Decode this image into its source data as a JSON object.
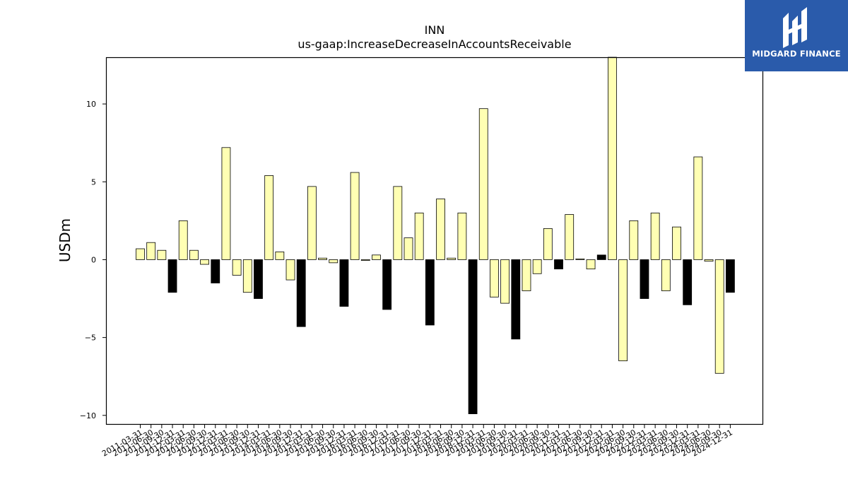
{
  "logo": {
    "text": "MIDGARD FINANCE",
    "background": "#2a5bab"
  },
  "chart_data": {
    "type": "bar",
    "title": "INN",
    "subtitle": "us-gaap:IncreaseDecreaseInAccountsReceivable",
    "xlabel": "",
    "ylabel": "USDm",
    "ylim": [
      -10.6,
      13.0
    ],
    "yticks": [
      -10,
      -5,
      0,
      5,
      10
    ],
    "grid": false,
    "colors": {
      "quarterly": "#ffffb3",
      "annual": "#000000",
      "edge": "#000000"
    },
    "categories": [
      "2011-03-31",
      "2011-06-30",
      "2011-09-30",
      "2011-12-31",
      "2012-03-31",
      "2012-06-30",
      "2012-09-30",
      "2012-12-31",
      "2013-03-31",
      "2013-06-30",
      "2013-09-30",
      "2013-12-31",
      "2014-03-31",
      "2014-06-30",
      "2014-09-30",
      "2014-12-31",
      "2015-03-31",
      "2015-06-30",
      "2015-09-30",
      "2015-12-31",
      "2016-03-31",
      "2016-06-30",
      "2016-09-30",
      "2016-12-31",
      "2017-03-31",
      "2017-06-30",
      "2017-09-30",
      "2017-12-31",
      "2018-03-31",
      "2018-06-30",
      "2018-09-30",
      "2018-12-31",
      "2019-03-31",
      "2019-06-30",
      "2019-09-30",
      "2019-12-31",
      "2020-03-31",
      "2020-06-30",
      "2020-09-30",
      "2020-12-31",
      "2021-03-31",
      "2021-06-30",
      "2021-09-30",
      "2021-12-31",
      "2022-03-31",
      "2022-06-30",
      "2022-09-30",
      "2022-12-31",
      "2023-03-31",
      "2023-06-30",
      "2023-09-30",
      "2023-12-31",
      "2024-03-31",
      "2024-06-30",
      "2024-09-30",
      "2024-12-31"
    ],
    "values": [
      0.7,
      1.1,
      0.6,
      -2.1,
      2.5,
      0.6,
      -0.3,
      -1.5,
      7.2,
      -1.0,
      -2.1,
      -2.5,
      5.4,
      0.5,
      -1.3,
      -4.3,
      4.7,
      0.1,
      -0.2,
      -3.0,
      5.6,
      -0.05,
      0.3,
      -3.2,
      4.7,
      1.4,
      3.0,
      -4.2,
      3.9,
      0.1,
      3.0,
      -9.9,
      9.7,
      -2.4,
      -2.8,
      -5.1,
      -2.0,
      -0.9,
      2.0,
      -0.6,
      2.9,
      0.05,
      -0.6,
      0.3,
      13.5,
      -6.5,
      2.5,
      -2.5,
      3.0,
      -2.0,
      2.1,
      -2.9,
      6.6,
      -0.1,
      -7.3,
      -2.1
    ],
    "annual_flags": [
      false,
      false,
      false,
      true,
      false,
      false,
      false,
      true,
      false,
      false,
      false,
      true,
      false,
      false,
      false,
      true,
      false,
      false,
      false,
      true,
      false,
      false,
      false,
      true,
      false,
      false,
      false,
      true,
      false,
      false,
      false,
      true,
      false,
      false,
      false,
      true,
      false,
      false,
      false,
      true,
      false,
      false,
      false,
      true,
      false,
      false,
      false,
      true,
      false,
      false,
      false,
      true,
      false,
      false,
      false,
      true
    ]
  }
}
